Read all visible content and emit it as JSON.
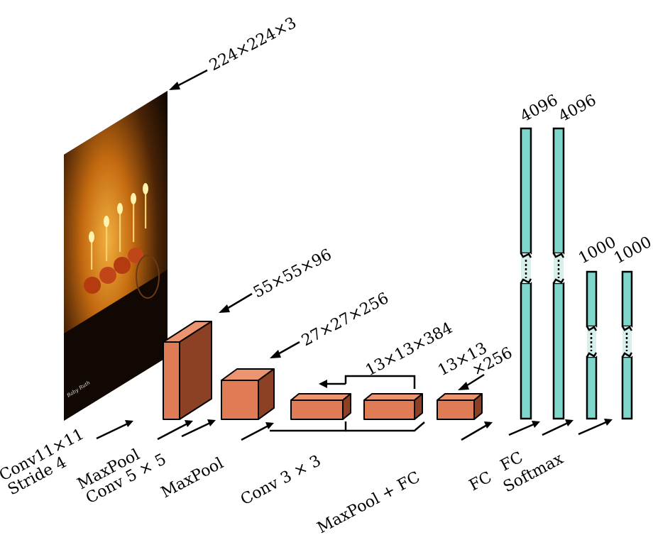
{
  "colors": {
    "block_front": "#e07c55",
    "block_top": "#ec9470",
    "block_side": "#8c4024",
    "fc_bar": "#7fd7cc",
    "fc_break": "#d7f0ec",
    "ink": "#000000"
  },
  "input_image": {
    "watermark": "Baby Ruth"
  },
  "labels": {
    "dim_input": "224×224×3",
    "dim_conv1": "55×55×96",
    "dim_pool1": "27×27×256",
    "dim_conv3": "13×13×384",
    "dim_conv5_line1": "13×13",
    "dim_conv5_line2": "×256",
    "fc1_size": "4096",
    "fc2_size": "4096",
    "fc3_size": "1000",
    "softmax_size": "1000",
    "op_conv11_line1": "Conv11×11",
    "op_conv11_line2": "Stride 4",
    "op_maxpool_a": "MaxPool",
    "op_conv5": "Conv 5 × 5",
    "op_maxpool_b": "MaxPool",
    "op_conv3": "Conv 3 × 3",
    "op_maxpool_fc": "MaxPool + FC",
    "op_fc1": "FC",
    "op_fc2": "FC",
    "op_softmax": "Softmax"
  }
}
